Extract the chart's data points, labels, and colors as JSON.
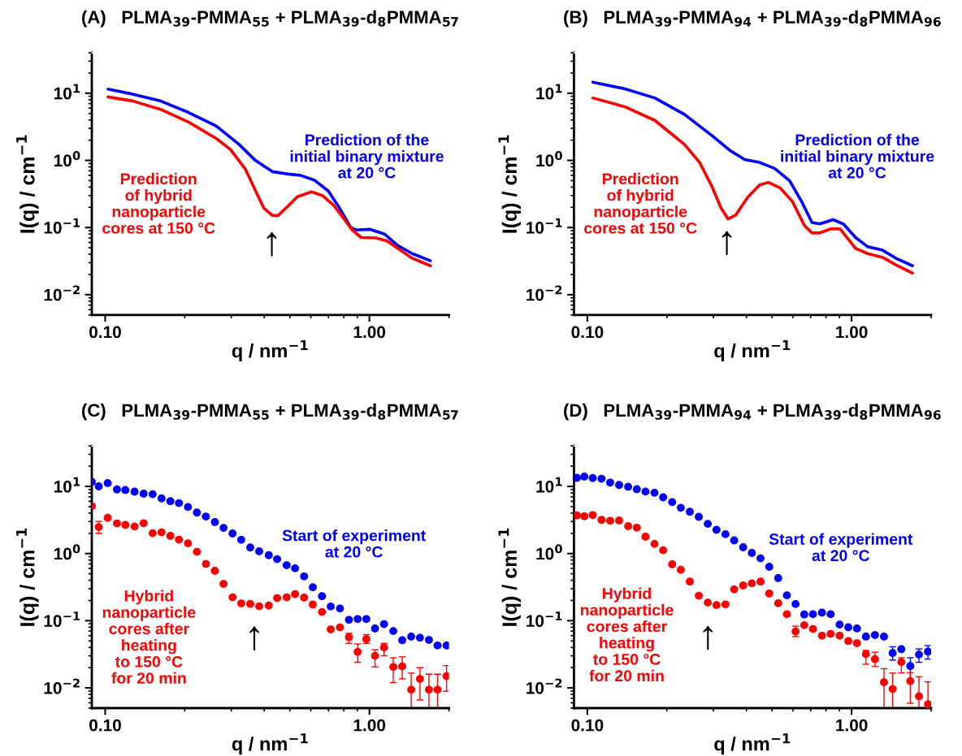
{
  "chart_data": [
    {
      "type": "line",
      "title": "(A)   PLMA$_{39}$-PMMA$_{55}$ + PLMA$_{39}$-d$_{8}$PMMA$_{57}$",
      "xlabel": "q / nm$^{−1}$",
      "ylabel": "I(q) / cm$^{−1}$",
      "log": "xy",
      "grid": false,
      "legend": false,
      "line_style": "solid",
      "xlim": [
        0.089,
        2.0
      ],
      "ylim": [
        0.005,
        40
      ],
      "xticks": [
        {
          "value": 0.1,
          "label": "0.10"
        },
        {
          "value": 0.2,
          "label": null
        },
        {
          "value": 0.3,
          "label": null
        },
        {
          "value": 0.4,
          "label": null
        },
        {
          "value": 0.5,
          "label": null
        },
        {
          "value": 0.6,
          "label": null
        },
        {
          "value": 0.7,
          "label": null
        },
        {
          "value": 0.8,
          "label": null
        },
        {
          "value": 0.9,
          "label": null
        },
        {
          "value": 1,
          "label": "1.00"
        },
        {
          "value": 2,
          "label": null
        }
      ],
      "yticks": [
        {
          "value": 0.005,
          "label": null
        },
        {
          "value": 0.006,
          "label": null
        },
        {
          "value": 0.007,
          "label": null
        },
        {
          "value": 0.008,
          "label": null
        },
        {
          "value": 0.009,
          "label": null
        },
        {
          "value": 0.01,
          "label": "10$^{−2}$"
        },
        {
          "value": 0.02,
          "label": null
        },
        {
          "value": 0.03,
          "label": null
        },
        {
          "value": 0.04,
          "label": null
        },
        {
          "value": 0.05,
          "label": null
        },
        {
          "value": 0.06,
          "label": null
        },
        {
          "value": 0.07,
          "label": null
        },
        {
          "value": 0.08,
          "label": null
        },
        {
          "value": 0.09,
          "label": null
        },
        {
          "value": 0.1,
          "label": "10$^{−1}$"
        },
        {
          "value": 0.2,
          "label": null
        },
        {
          "value": 0.3,
          "label": null
        },
        {
          "value": 0.4,
          "label": null
        },
        {
          "value": 0.5,
          "label": null
        },
        {
          "value": 0.6,
          "label": null
        },
        {
          "value": 0.7,
          "label": null
        },
        {
          "value": 0.8,
          "label": null
        },
        {
          "value": 0.9,
          "label": null
        },
        {
          "value": 1,
          "label": "10$^{0}$"
        },
        {
          "value": 2,
          "label": null
        },
        {
          "value": 3,
          "label": null
        },
        {
          "value": 4,
          "label": null
        },
        {
          "value": 5,
          "label": null
        },
        {
          "value": 6,
          "label": null
        },
        {
          "value": 7,
          "label": null
        },
        {
          "value": 8,
          "label": null
        },
        {
          "value": 9,
          "label": null
        },
        {
          "value": 10,
          "label": "10$^{1}$"
        },
        {
          "value": 20,
          "label": null
        },
        {
          "value": 30,
          "label": null
        },
        {
          "value": 40,
          "label": null
        }
      ],
      "annotations": [
        "↑"
      ],
      "series": [
        {
          "name": "Prediction of the\ninitial binary mixture\nat 20 °C",
          "color": "#0000ff",
          "x": [
            0.1025,
            0.127,
            0.162,
            0.206,
            0.263,
            0.32,
            0.371,
            0.429,
            0.484,
            0.547,
            0.618,
            0.699,
            0.77,
            0.85,
            0.89,
            1.007,
            1.14,
            1.28,
            1.45,
            1.7
          ],
          "values": [
            11.5,
            9.7,
            7.66,
            5.2,
            3.25,
            1.75,
            0.99,
            0.68,
            0.63,
            0.6,
            0.51,
            0.35,
            0.196,
            0.1,
            0.092,
            0.094,
            0.08,
            0.054,
            0.041,
            0.032
          ]
        },
        {
          "name": "Prediction\nof hybrid\nnanoparticle\ncores at 150 °C",
          "color": "#ff0000",
          "x": [
            0.1025,
            0.127,
            0.162,
            0.206,
            0.263,
            0.298,
            0.339,
            0.371,
            0.398,
            0.429,
            0.451,
            0.484,
            0.534,
            0.603,
            0.663,
            0.731,
            0.787,
            0.86,
            0.93,
            1.057,
            1.166,
            1.32,
            1.45,
            1.7
          ],
          "values": [
            8.8,
            7.66,
            5.75,
            3.75,
            2.12,
            1.45,
            0.745,
            0.35,
            0.196,
            0.151,
            0.151,
            0.196,
            0.288,
            0.34,
            0.3,
            0.216,
            0.148,
            0.092,
            0.071,
            0.07,
            0.063,
            0.045,
            0.035,
            0.027
          ]
        }
      ]
    },
    {
      "type": "line",
      "title": "(B)   PLMA$_{39}$-PMMA$_{94}$ + PLMA$_{39}$-d$_{8}$PMMA$_{96}$",
      "xlabel": "q / nm$^{−1}$",
      "ylabel": "I(q) / cm$^{−1}$",
      "log": "xy",
      "grid": false,
      "legend": false,
      "line_style": "solid",
      "xlim": [
        0.089,
        2.0
      ],
      "ylim": [
        0.005,
        40
      ],
      "xticks": [
        {
          "value": 0.1,
          "label": "0.10"
        },
        {
          "value": 0.2,
          "label": null
        },
        {
          "value": 0.3,
          "label": null
        },
        {
          "value": 0.4,
          "label": null
        },
        {
          "value": 0.5,
          "label": null
        },
        {
          "value": 0.6,
          "label": null
        },
        {
          "value": 0.7,
          "label": null
        },
        {
          "value": 0.8,
          "label": null
        },
        {
          "value": 0.9,
          "label": null
        },
        {
          "value": 1,
          "label": "1.00"
        },
        {
          "value": 2,
          "label": null
        }
      ],
      "yticks": [
        {
          "value": 0.005,
          "label": null
        },
        {
          "value": 0.006,
          "label": null
        },
        {
          "value": 0.007,
          "label": null
        },
        {
          "value": 0.008,
          "label": null
        },
        {
          "value": 0.009,
          "label": null
        },
        {
          "value": 0.01,
          "label": "10$^{−2}$"
        },
        {
          "value": 0.02,
          "label": null
        },
        {
          "value": 0.03,
          "label": null
        },
        {
          "value": 0.04,
          "label": null
        },
        {
          "value": 0.05,
          "label": null
        },
        {
          "value": 0.06,
          "label": null
        },
        {
          "value": 0.07,
          "label": null
        },
        {
          "value": 0.08,
          "label": null
        },
        {
          "value": 0.09,
          "label": null
        },
        {
          "value": 0.1,
          "label": "10$^{−1}$"
        },
        {
          "value": 0.2,
          "label": null
        },
        {
          "value": 0.3,
          "label": null
        },
        {
          "value": 0.4,
          "label": null
        },
        {
          "value": 0.5,
          "label": null
        },
        {
          "value": 0.6,
          "label": null
        },
        {
          "value": 0.7,
          "label": null
        },
        {
          "value": 0.8,
          "label": null
        },
        {
          "value": 0.9,
          "label": null
        },
        {
          "value": 1,
          "label": "10$^{0}$"
        },
        {
          "value": 2,
          "label": null
        },
        {
          "value": 3,
          "label": null
        },
        {
          "value": 4,
          "label": null
        },
        {
          "value": 5,
          "label": null
        },
        {
          "value": 6,
          "label": null
        },
        {
          "value": 7,
          "label": null
        },
        {
          "value": 8,
          "label": null
        },
        {
          "value": 9,
          "label": null
        },
        {
          "value": 10,
          "label": "10$^{1}$"
        },
        {
          "value": 20,
          "label": null
        },
        {
          "value": 30,
          "label": null
        },
        {
          "value": 40,
          "label": null
        }
      ],
      "annotations": [
        "↑"
      ],
      "series": [
        {
          "name": "Prediction of the\ninitial binary mixture\nat 20 °C",
          "color": "#0000ff",
          "x": [
            0.105,
            0.139,
            0.18,
            0.233,
            0.296,
            0.346,
            0.394,
            0.449,
            0.511,
            0.582,
            0.647,
            0.708,
            0.757,
            0.851,
            0.931,
            1.035,
            1.148,
            1.31,
            1.49,
            1.7
          ],
          "values": [
            14.6,
            11.6,
            8.5,
            4.84,
            2.35,
            1.41,
            1.03,
            0.93,
            0.76,
            0.5,
            0.244,
            0.119,
            0.113,
            0.131,
            0.113,
            0.071,
            0.052,
            0.046,
            0.034,
            0.027
          ]
        },
        {
          "name": "Prediction\nof hybrid\nnanoparticle\ncores at 150 °C",
          "color": "#ff0000",
          "x": [
            0.105,
            0.139,
            0.18,
            0.233,
            0.266,
            0.296,
            0.32,
            0.341,
            0.364,
            0.405,
            0.449,
            0.484,
            0.536,
            0.597,
            0.663,
            0.708,
            0.757,
            0.836,
            0.906,
            1.035,
            1.148,
            1.31,
            1.49,
            1.7
          ],
          "values": [
            8.5,
            6.26,
            3.94,
            1.73,
            0.93,
            0.41,
            0.198,
            0.134,
            0.153,
            0.284,
            0.43,
            0.47,
            0.39,
            0.244,
            0.107,
            0.083,
            0.083,
            0.096,
            0.095,
            0.049,
            0.041,
            0.036,
            0.027,
            0.021
          ]
        }
      ]
    },
    {
      "type": "scatter",
      "title": "(C)   PLMA$_{39}$-PMMA$_{55}$ + PLMA$_{39}$-d$_{8}$PMMA$_{57}$",
      "xlabel": "q / nm$^{−1}$",
      "ylabel": "I(q) / cm$^{−1}$",
      "log": "xy",
      "grid": false,
      "legend": false,
      "marker": "circle",
      "xlim": [
        0.089,
        2.0
      ],
      "ylim": [
        0.005,
        40
      ],
      "xticks": [
        {
          "value": 0.1,
          "label": "0.10"
        },
        {
          "value": 0.2,
          "label": null
        },
        {
          "value": 0.3,
          "label": null
        },
        {
          "value": 0.4,
          "label": null
        },
        {
          "value": 0.5,
          "label": null
        },
        {
          "value": 0.6,
          "label": null
        },
        {
          "value": 0.7,
          "label": null
        },
        {
          "value": 0.8,
          "label": null
        },
        {
          "value": 0.9,
          "label": null
        },
        {
          "value": 1,
          "label": "1.00"
        },
        {
          "value": 2,
          "label": null
        }
      ],
      "yticks": [
        {
          "value": 0.005,
          "label": null
        },
        {
          "value": 0.006,
          "label": null
        },
        {
          "value": 0.007,
          "label": null
        },
        {
          "value": 0.008,
          "label": null
        },
        {
          "value": 0.009,
          "label": null
        },
        {
          "value": 0.01,
          "label": "10$^{−2}$"
        },
        {
          "value": 0.02,
          "label": null
        },
        {
          "value": 0.03,
          "label": null
        },
        {
          "value": 0.04,
          "label": null
        },
        {
          "value": 0.05,
          "label": null
        },
        {
          "value": 0.06,
          "label": null
        },
        {
          "value": 0.07,
          "label": null
        },
        {
          "value": 0.08,
          "label": null
        },
        {
          "value": 0.09,
          "label": null
        },
        {
          "value": 0.1,
          "label": "10$^{−1}$"
        },
        {
          "value": 0.2,
          "label": null
        },
        {
          "value": 0.3,
          "label": null
        },
        {
          "value": 0.4,
          "label": null
        },
        {
          "value": 0.5,
          "label": null
        },
        {
          "value": 0.6,
          "label": null
        },
        {
          "value": 0.7,
          "label": null
        },
        {
          "value": 0.8,
          "label": null
        },
        {
          "value": 0.9,
          "label": null
        },
        {
          "value": 1,
          "label": "10$^{0}$"
        },
        {
          "value": 2,
          "label": null
        },
        {
          "value": 3,
          "label": null
        },
        {
          "value": 4,
          "label": null
        },
        {
          "value": 5,
          "label": null
        },
        {
          "value": 6,
          "label": null
        },
        {
          "value": 7,
          "label": null
        },
        {
          "value": 8,
          "label": null
        },
        {
          "value": 9,
          "label": null
        },
        {
          "value": 10,
          "label": "10$^{1}$"
        },
        {
          "value": 20,
          "label": null
        },
        {
          "value": 30,
          "label": null
        },
        {
          "value": 40,
          "label": null
        }
      ],
      "annotations": [
        "↑"
      ],
      "x": [
        0.089,
        0.0945,
        0.1022,
        0.1108,
        0.1192,
        0.1292,
        0.1398,
        0.1512,
        0.1634,
        0.1764,
        0.1902,
        0.2057,
        0.2224,
        0.2405,
        0.2601,
        0.2805,
        0.3034,
        0.3273,
        0.3539,
        0.3827,
        0.4159,
        0.4474,
        0.4862,
        0.5232,
        0.5658,
        0.6105,
        0.6615,
        0.7137,
        0.7735,
        0.8365,
        0.9024,
        0.9734,
        1.05,
        1.136,
        1.231,
        1.331,
        1.439,
        1.553,
        1.68,
        1.811,
        1.959
      ],
      "series": [
        {
          "name": "Start of experiment\nat 20 °C",
          "color": "#0000ff",
          "values": [
            11.65,
            10.0,
            11.2,
            9.0,
            8.83,
            8.34,
            7.8,
            7.65,
            6.63,
            6.03,
            5.64,
            4.93,
            4.07,
            3.56,
            2.94,
            2.41,
            1.99,
            1.6,
            1.23,
            1.08,
            0.945,
            0.826,
            0.67,
            0.603,
            0.457,
            0.315,
            0.232,
            0.163,
            0.152,
            0.103,
            0.106,
            0.106,
            0.0766,
            0.0891,
            0.0702,
            0.0512,
            0.058,
            0.0558,
            0.0517,
            0.0428,
            0.0428
          ]
        },
        {
          "name": "Hybrid\nnanoparticle\ncores after\nheating\nto 150 °C\nfor 20 min",
          "color": "#ff0000",
          "values": [
            5.08,
            2.48,
            3.4,
            2.81,
            2.67,
            2.53,
            2.83,
            2.01,
            2.07,
            1.83,
            1.61,
            1.42,
            1.06,
            0.702,
            0.553,
            0.353,
            0.223,
            0.181,
            0.178,
            0.164,
            0.168,
            0.217,
            0.223,
            0.248,
            0.221,
            0.174,
            0.135,
            0.0743,
            0.0795,
            0.0569,
            0.0343,
            0.0532,
            0.03,
            0.04,
            0.0205,
            0.0209,
            0.0094,
            0.0136,
            0.0094,
            0.0094,
            0.0149
          ],
          "errors": [
            null,
            [
              2.0,
              3.0
            ],
            null,
            null,
            null,
            null,
            null,
            null,
            null,
            null,
            null,
            null,
            null,
            null,
            null,
            null,
            null,
            null,
            null,
            null,
            null,
            null,
            null,
            null,
            null,
            null,
            null,
            null,
            null,
            [
              0.046,
              0.065
            ],
            [
              0.024,
              0.045
            ],
            [
              0.046,
              0.062
            ],
            [
              0.0205,
              0.037
            ],
            [
              0.03,
              0.046
            ],
            [
              0.012,
              0.028
            ],
            [
              0.0136,
              0.029
            ],
            [
              0.005,
              0.0166
            ],
            [
              0.0066,
              0.02
            ],
            [
              0.005,
              0.016
            ],
            [
              0.005,
              0.016
            ],
            [
              0.0089,
              0.0215
            ]
          ]
        }
      ]
    },
    {
      "type": "scatter",
      "title": "(D)   PLMA$_{39}$-PMMA$_{94}$ + PLMA$_{39}$-d$_{8}$PMMA$_{96}$",
      "xlabel": "q / nm$^{−1}$",
      "ylabel": "I(q) / cm$^{−1}$",
      "log": "xy",
      "grid": false,
      "legend": false,
      "marker": "circle",
      "xlim": [
        0.089,
        2.0
      ],
      "ylim": [
        0.005,
        40
      ],
      "xticks": [
        {
          "value": 0.1,
          "label": "0.10"
        },
        {
          "value": 0.2,
          "label": null
        },
        {
          "value": 0.3,
          "label": null
        },
        {
          "value": 0.4,
          "label": null
        },
        {
          "value": 0.5,
          "label": null
        },
        {
          "value": 0.6,
          "label": null
        },
        {
          "value": 0.7,
          "label": null
        },
        {
          "value": 0.8,
          "label": null
        },
        {
          "value": 0.9,
          "label": null
        },
        {
          "value": 1,
          "label": "1.00"
        },
        {
          "value": 2,
          "label": null
        }
      ],
      "yticks": [
        {
          "value": 0.005,
          "label": null
        },
        {
          "value": 0.006,
          "label": null
        },
        {
          "value": 0.007,
          "label": null
        },
        {
          "value": 0.008,
          "label": null
        },
        {
          "value": 0.009,
          "label": null
        },
        {
          "value": 0.01,
          "label": "10$^{−2}$"
        },
        {
          "value": 0.02,
          "label": null
        },
        {
          "value": 0.03,
          "label": null
        },
        {
          "value": 0.04,
          "label": null
        },
        {
          "value": 0.05,
          "label": null
        },
        {
          "value": 0.06,
          "label": null
        },
        {
          "value": 0.07,
          "label": null
        },
        {
          "value": 0.08,
          "label": null
        },
        {
          "value": 0.09,
          "label": null
        },
        {
          "value": 0.1,
          "label": "10$^{−1}$"
        },
        {
          "value": 0.2,
          "label": null
        },
        {
          "value": 0.3,
          "label": null
        },
        {
          "value": 0.4,
          "label": null
        },
        {
          "value": 0.5,
          "label": null
        },
        {
          "value": 0.6,
          "label": null
        },
        {
          "value": 0.7,
          "label": null
        },
        {
          "value": 0.8,
          "label": null
        },
        {
          "value": 0.9,
          "label": null
        },
        {
          "value": 1,
          "label": "10$^{0}$"
        },
        {
          "value": 2,
          "label": null
        },
        {
          "value": 3,
          "label": null
        },
        {
          "value": 4,
          "label": null
        },
        {
          "value": 5,
          "label": null
        },
        {
          "value": 6,
          "label": null
        },
        {
          "value": 7,
          "label": null
        },
        {
          "value": 8,
          "label": null
        },
        {
          "value": 9,
          "label": null
        },
        {
          "value": 10,
          "label": "10$^{1}$"
        },
        {
          "value": 20,
          "label": null
        },
        {
          "value": 30,
          "label": null
        },
        {
          "value": 40,
          "label": null
        }
      ],
      "annotations": [
        "↑"
      ],
      "x": [
        0.0913,
        0.0974,
        0.1048,
        0.1131,
        0.122,
        0.1319,
        0.1427,
        0.1539,
        0.166,
        0.1795,
        0.1936,
        0.2094,
        0.2258,
        0.2442,
        0.2641,
        0.2856,
        0.3081,
        0.3332,
        0.3594,
        0.3888,
        0.4193,
        0.4523,
        0.4879,
        0.5276,
        0.569,
        0.6138,
        0.6621,
        0.7141,
        0.7724,
        0.833,
        0.9009,
        0.9717,
        1.048,
        1.133,
        1.226,
        1.326,
        1.43,
        1.543,
        1.668,
        1.799,
        1.946
      ],
      "series": [
        {
          "name": "Start of experiment\nat 20 °C",
          "color": "#0000ff",
          "values": [
            13.4,
            14.0,
            13.3,
            13.0,
            11.4,
            10.5,
            9.87,
            9.08,
            8.37,
            8.03,
            6.88,
            5.83,
            4.8,
            4.19,
            3.52,
            2.77,
            2.26,
            1.94,
            1.57,
            1.24,
            1.02,
            0.848,
            0.635,
            0.43,
            0.239,
            0.177,
            0.124,
            0.125,
            0.132,
            0.125,
            0.0877,
            0.08,
            0.0767,
            0.0581,
            0.0611,
            0.0581,
            0.033,
            0.0377,
            0.0211,
            0.0313,
            0.0347
          ],
          "errors": [
            null,
            null,
            null,
            null,
            null,
            null,
            null,
            null,
            null,
            null,
            null,
            null,
            null,
            null,
            null,
            null,
            null,
            null,
            null,
            null,
            null,
            null,
            null,
            null,
            null,
            null,
            null,
            null,
            null,
            null,
            null,
            null,
            null,
            null,
            null,
            null,
            [
              0.0259,
              0.041
            ],
            null,
            [
              0.013,
              0.0281
            ],
            [
              0.024,
              0.038
            ],
            [
              0.0268,
              0.0425
            ]
          ]
        },
        {
          "name": "Hybrid\nnanoparticle\ncores after\nheating\nto 150 °C\nfor 20 min",
          "color": "#ff0000",
          "values": [
            3.7,
            3.59,
            3.74,
            3.17,
            3.08,
            3.11,
            2.56,
            2.43,
            1.78,
            1.39,
            1.12,
            0.69,
            0.573,
            0.383,
            0.236,
            0.186,
            0.171,
            0.175,
            0.293,
            0.335,
            0.36,
            0.383,
            0.254,
            0.182,
            0.125,
            0.0692,
            0.0859,
            0.0752,
            0.0599,
            0.0637,
            0.0599,
            0.0498,
            0.0463,
            0.0319,
            0.0268,
            0.0121,
            0.0096,
            0.0242,
            0.0126,
            0.0075,
            0.0057
          ],
          "errors": [
            null,
            null,
            null,
            null,
            null,
            null,
            null,
            null,
            null,
            null,
            null,
            null,
            null,
            null,
            null,
            null,
            null,
            null,
            null,
            null,
            null,
            null,
            null,
            null,
            null,
            [
              0.058,
              0.083
            ],
            null,
            null,
            null,
            null,
            null,
            null,
            null,
            [
              0.0225,
              0.036
            ],
            [
              0.0208,
              0.034
            ],
            [
              0.005,
              0.0193
            ],
            [
              0.005,
              0.0166
            ],
            [
              0.0167,
              0.0281
            ],
            [
              0.0059,
              0.0168
            ],
            [
              0.005,
              0.0146
            ],
            [
              0.005,
              0.0123
            ]
          ]
        }
      ]
    }
  ]
}
